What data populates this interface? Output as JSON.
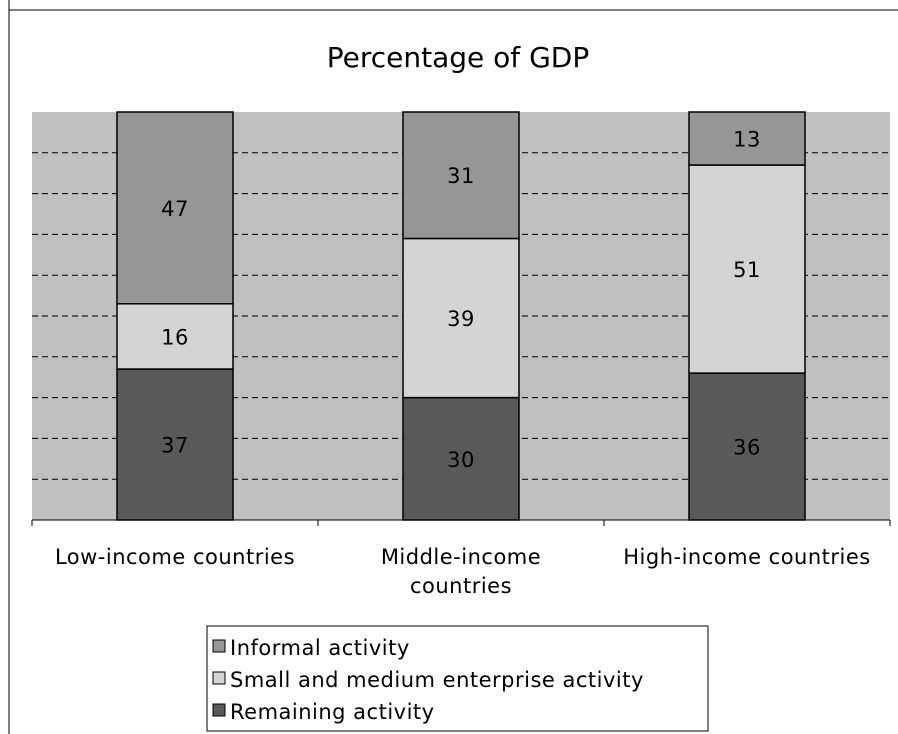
{
  "chart_data": {
    "type": "bar",
    "stacked": true,
    "title": "Percentage of GDP",
    "categories": [
      [
        "Low-income countries"
      ],
      [
        "Middle-income",
        "countries"
      ],
      [
        "High-income countries"
      ]
    ],
    "series": [
      {
        "name": "Remaining activity",
        "values": [
          37,
          30,
          36
        ],
        "color": "#595959"
      },
      {
        "name": "Small and medium enterprise activity",
        "values": [
          16,
          39,
          51
        ],
        "color": "#d4d4d4"
      },
      {
        "name": "Informal activity",
        "values": [
          47,
          31,
          13
        ],
        "color": "#969696"
      }
    ],
    "ylim": [
      0,
      100
    ],
    "gridlines": "dashed",
    "plot_background": "#c0c0c0",
    "legend": {
      "position": "bottom",
      "order": [
        "Informal activity",
        "Small and medium enterprise activity",
        "Remaining activity"
      ]
    }
  }
}
